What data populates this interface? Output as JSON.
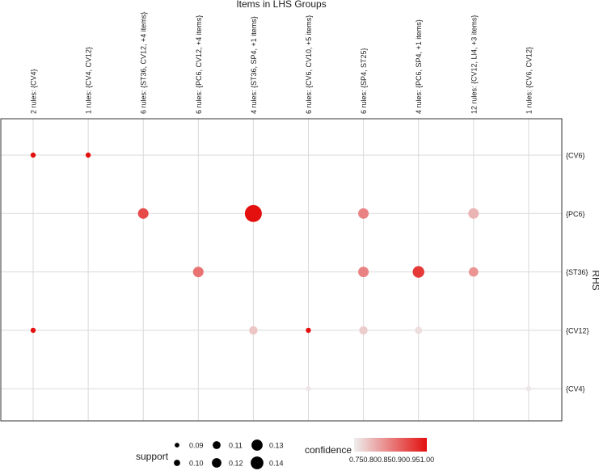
{
  "chart_data": {
    "type": "grouped-matrix-bubble",
    "title": "Items in LHS Groups",
    "ylabel": "RHS",
    "lhs_groups": [
      "2 rules: {CV4}",
      "1 rules: {CV4, CV12}",
      "6 rules: {ST36, CV12, +4 items}",
      "6 rules: {PC6, CV12, +4 items}",
      "4 rules: {ST36, SP4, +1 items}",
      "6 rules: {CV6, CV10, +5 items}",
      "6 rules: {SP4, ST25}",
      "4 rules: {PC6, SP4, +1 items}",
      "12 rules: {CV12, LI4, +3 items}",
      "1 rules: {CV6, CV12}"
    ],
    "rhs": [
      "{CV6}",
      "{PC6}",
      "{ST36}",
      "{CV12}",
      "{CV4}"
    ],
    "points": [
      {
        "lhs": 0,
        "rhs": 0,
        "support": 0.085,
        "confidence": 1.0
      },
      {
        "lhs": 1,
        "rhs": 0,
        "support": 0.085,
        "confidence": 1.0
      },
      {
        "lhs": 2,
        "rhs": 1,
        "support": 0.11,
        "confidence": 0.93
      },
      {
        "lhs": 4,
        "rhs": 1,
        "support": 0.14,
        "confidence": 1.0
      },
      {
        "lhs": 6,
        "rhs": 1,
        "support": 0.11,
        "confidence": 0.86
      },
      {
        "lhs": 8,
        "rhs": 1,
        "support": 0.11,
        "confidence": 0.8
      },
      {
        "lhs": 3,
        "rhs": 2,
        "support": 0.11,
        "confidence": 0.88
      },
      {
        "lhs": 6,
        "rhs": 2,
        "support": 0.11,
        "confidence": 0.86
      },
      {
        "lhs": 7,
        "rhs": 2,
        "support": 0.115,
        "confidence": 0.95
      },
      {
        "lhs": 8,
        "rhs": 2,
        "support": 0.105,
        "confidence": 0.84
      },
      {
        "lhs": 0,
        "rhs": 3,
        "support": 0.085,
        "confidence": 1.0
      },
      {
        "lhs": 4,
        "rhs": 3,
        "support": 0.1,
        "confidence": 0.78
      },
      {
        "lhs": 5,
        "rhs": 3,
        "support": 0.085,
        "confidence": 1.0
      },
      {
        "lhs": 6,
        "rhs": 3,
        "support": 0.1,
        "confidence": 0.77
      },
      {
        "lhs": 7,
        "rhs": 3,
        "support": 0.095,
        "confidence": 0.75
      },
      {
        "lhs": 5,
        "rhs": 4,
        "support": 0.085,
        "confidence": 0.74
      },
      {
        "lhs": 9,
        "rhs": 4,
        "support": 0.085,
        "confidence": 0.74
      }
    ],
    "legend": {
      "support_title": "support",
      "support_levels": [
        {
          "value": 0.09,
          "label": "0.09"
        },
        {
          "value": 0.1,
          "label": "0.10"
        },
        {
          "value": 0.11,
          "label": "0.11"
        },
        {
          "value": 0.12,
          "label": "0.12"
        },
        {
          "value": 0.13,
          "label": "0.13"
        },
        {
          "value": 0.14,
          "label": "0.14"
        }
      ],
      "confidence_title": "confidence",
      "confidence_range": [
        0.73,
        1.0
      ],
      "confidence_tick_text": "0.750.800.850.900.951.00"
    },
    "colors": {
      "low": "#eeeeee",
      "high": "#e3100f",
      "grid": "#d9d9d9",
      "border": "#333333",
      "text": "#1a1a1a"
    }
  }
}
